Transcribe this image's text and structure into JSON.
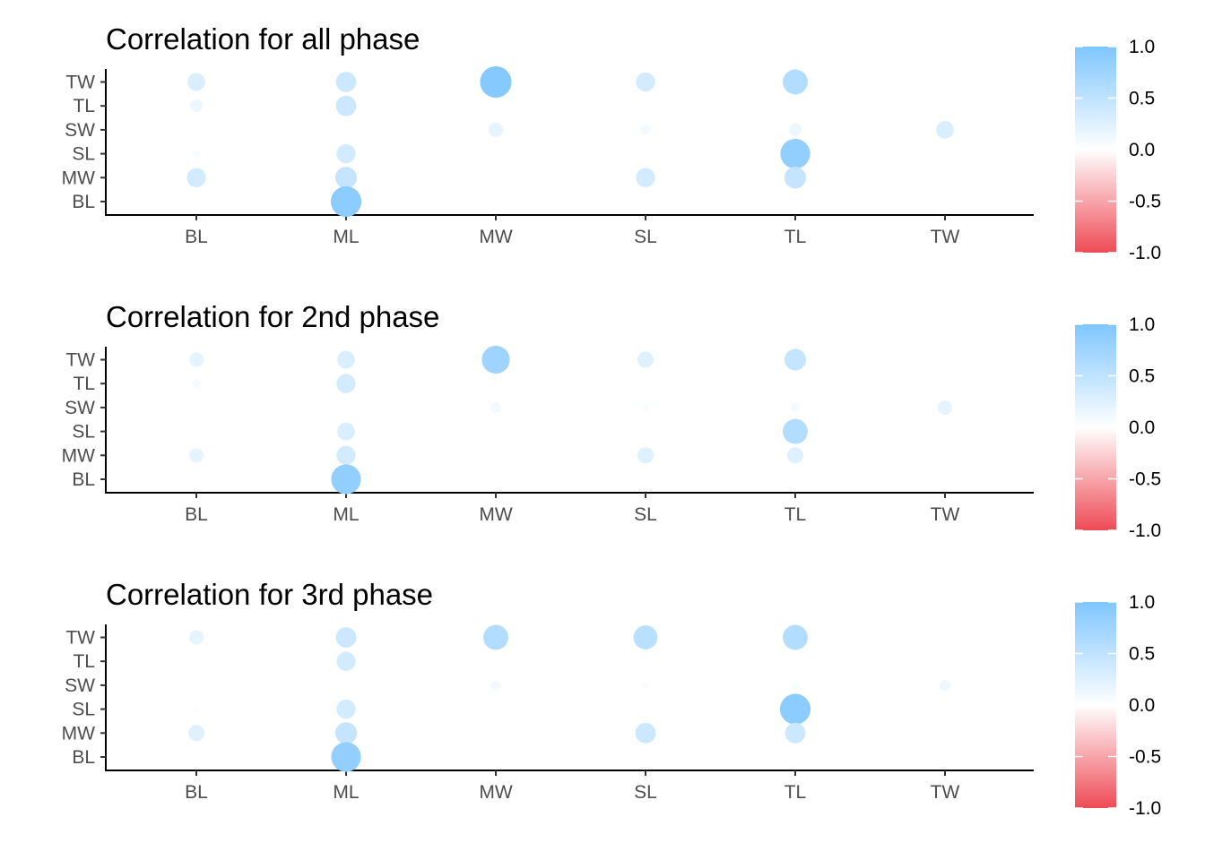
{
  "chart_data": [
    {
      "type": "scatter",
      "title": "Correlation for all phase",
      "x_categories": [
        "BL",
        "ML",
        "MW",
        "SL",
        "TL",
        "TW"
      ],
      "y_categories": [
        "BL",
        "MW",
        "SL",
        "SW",
        "TL",
        "TW"
      ],
      "points": [
        {
          "x": "BL",
          "y": "TW",
          "r": 0.3
        },
        {
          "x": "BL",
          "y": "TL",
          "r": 0.15
        },
        {
          "x": "BL",
          "y": "SW",
          "r": 0.02
        },
        {
          "x": "BL",
          "y": "SL",
          "r": 0.06
        },
        {
          "x": "BL",
          "y": "MW",
          "r": 0.35
        },
        {
          "x": "ML",
          "y": "TW",
          "r": 0.4
        },
        {
          "x": "ML",
          "y": "TL",
          "r": 0.4
        },
        {
          "x": "ML",
          "y": "SW",
          "r": 0.02
        },
        {
          "x": "ML",
          "y": "SL",
          "r": 0.35
        },
        {
          "x": "ML",
          "y": "MW",
          "r": 0.45
        },
        {
          "x": "ML",
          "y": "BL",
          "r": 0.9
        },
        {
          "x": "MW",
          "y": "TW",
          "r": 0.95
        },
        {
          "x": "MW",
          "y": "SW",
          "r": 0.2
        },
        {
          "x": "SL",
          "y": "TW",
          "r": 0.35
        },
        {
          "x": "SL",
          "y": "SW",
          "r": 0.1
        },
        {
          "x": "SL",
          "y": "MW",
          "r": 0.35
        },
        {
          "x": "TL",
          "y": "TW",
          "r": 0.6
        },
        {
          "x": "TL",
          "y": "SW",
          "r": 0.15
        },
        {
          "x": "TL",
          "y": "SL",
          "r": 0.85
        },
        {
          "x": "TL",
          "y": "MW",
          "r": 0.45
        },
        {
          "x": "TW",
          "y": "SW",
          "r": 0.3
        }
      ],
      "legend": {
        "placement": "right",
        "ticks": [
          "1.0",
          "0.5",
          "0.0",
          "-0.5",
          "-1.0"
        ],
        "range": [
          -1,
          1
        ]
      },
      "grid": false
    },
    {
      "type": "scatter",
      "title": "Correlation for 2nd phase",
      "x_categories": [
        "BL",
        "ML",
        "MW",
        "SL",
        "TL",
        "TW"
      ],
      "y_categories": [
        "BL",
        "MW",
        "SL",
        "SW",
        "TL",
        "TW"
      ],
      "points": [
        {
          "x": "BL",
          "y": "TW",
          "r": 0.2
        },
        {
          "x": "BL",
          "y": "TL",
          "r": 0.08
        },
        {
          "x": "BL",
          "y": "SW",
          "r": 0.02
        },
        {
          "x": "BL",
          "y": "MW",
          "r": 0.2
        },
        {
          "x": "ML",
          "y": "TW",
          "r": 0.3
        },
        {
          "x": "ML",
          "y": "TL",
          "r": 0.35
        },
        {
          "x": "ML",
          "y": "SW",
          "r": 0.02
        },
        {
          "x": "ML",
          "y": "SL",
          "r": 0.3
        },
        {
          "x": "ML",
          "y": "MW",
          "r": 0.35
        },
        {
          "x": "ML",
          "y": "BL",
          "r": 0.85
        },
        {
          "x": "MW",
          "y": "TW",
          "r": 0.75
        },
        {
          "x": "MW",
          "y": "SW",
          "r": 0.1
        },
        {
          "x": "SL",
          "y": "TW",
          "r": 0.25
        },
        {
          "x": "SL",
          "y": "SW",
          "r": 0.06
        },
        {
          "x": "SL",
          "y": "MW",
          "r": 0.25
        },
        {
          "x": "TL",
          "y": "TW",
          "r": 0.45
        },
        {
          "x": "TL",
          "y": "SW",
          "r": 0.08
        },
        {
          "x": "TL",
          "y": "SL",
          "r": 0.6
        },
        {
          "x": "TL",
          "y": "MW",
          "r": 0.25
        },
        {
          "x": "TW",
          "y": "SW",
          "r": 0.2
        }
      ],
      "legend": {
        "placement": "right",
        "ticks": [
          "1.0",
          "0.5",
          "0.0",
          "-0.5",
          "-1.0"
        ],
        "range": [
          -1,
          1
        ]
      },
      "grid": false
    },
    {
      "type": "scatter",
      "title": "Correlation for 3rd phase",
      "x_categories": [
        "BL",
        "ML",
        "MW",
        "SL",
        "TL",
        "TW"
      ],
      "y_categories": [
        "BL",
        "MW",
        "SL",
        "SW",
        "TL",
        "TW"
      ],
      "points": [
        {
          "x": "BL",
          "y": "TW",
          "r": 0.2
        },
        {
          "x": "BL",
          "y": "SL",
          "r": 0.04
        },
        {
          "x": "BL",
          "y": "MW",
          "r": 0.25
        },
        {
          "x": "ML",
          "y": "TW",
          "r": 0.4
        },
        {
          "x": "ML",
          "y": "TL",
          "r": 0.35
        },
        {
          "x": "ML",
          "y": "SL",
          "r": 0.35
        },
        {
          "x": "ML",
          "y": "MW",
          "r": 0.45
        },
        {
          "x": "ML",
          "y": "BL",
          "r": 0.85
        },
        {
          "x": "MW",
          "y": "TW",
          "r": 0.6
        },
        {
          "x": "MW",
          "y": "SW",
          "r": 0.1
        },
        {
          "x": "SL",
          "y": "TW",
          "r": 0.55
        },
        {
          "x": "SL",
          "y": "SW",
          "r": 0.05
        },
        {
          "x": "SL",
          "y": "MW",
          "r": 0.4
        },
        {
          "x": "TL",
          "y": "TW",
          "r": 0.6
        },
        {
          "x": "TL",
          "y": "SW",
          "r": 0.06
        },
        {
          "x": "TL",
          "y": "SL",
          "r": 0.9
        },
        {
          "x": "TL",
          "y": "MW",
          "r": 0.4
        },
        {
          "x": "TW",
          "y": "SW",
          "r": 0.12
        }
      ],
      "legend": {
        "placement": "right",
        "ticks": [
          "1.0",
          "0.5",
          "0.0",
          "-0.5",
          "-1.0"
        ],
        "range": [
          -1,
          1
        ]
      },
      "grid": false
    }
  ],
  "colors": {
    "positive": "#7fc6ff",
    "zero": "#ffffff",
    "negative": "#ee4b55",
    "axis": "#000000",
    "tick_text": "#4d4d4d"
  }
}
